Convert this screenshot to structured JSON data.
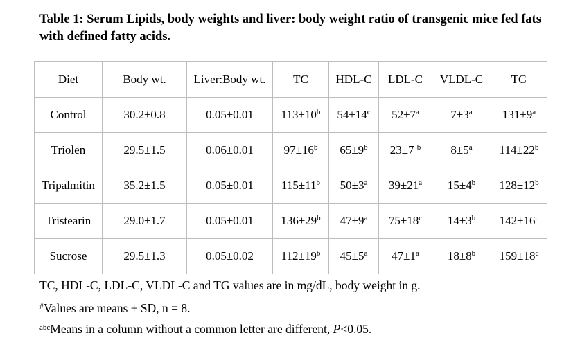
{
  "caption": "Table 1: Serum Lipids, body weights and liver: body weight ratio of transgenic mice fed fats with defined fatty acids.",
  "table": {
    "headers": [
      "Diet",
      "Body wt.",
      "Liver:Body wt.",
      "TC",
      "HDL-C",
      "LDL-C",
      "VLDL-C",
      "TG"
    ],
    "rows": [
      [
        {
          "v": "Control"
        },
        {
          "v": "30.2±0.8"
        },
        {
          "v": "0.05±0.01"
        },
        {
          "v": "113±10",
          "s": "b"
        },
        {
          "v": "54±14",
          "s": "c"
        },
        {
          "v": "52±7",
          "s": "a"
        },
        {
          "v": "7±3",
          "s": "a"
        },
        {
          "v": "131±9",
          "s": "a"
        }
      ],
      [
        {
          "v": "Triolen"
        },
        {
          "v": "29.5±1.5"
        },
        {
          "v": "0.06±0.01"
        },
        {
          "v": "97±16",
          "s": "b"
        },
        {
          "v": "65±9",
          "s": "b"
        },
        {
          "v": "23±7 ",
          "s": "b"
        },
        {
          "v": "8±5",
          "s": "a"
        },
        {
          "v": "114±22",
          "s": "b"
        }
      ],
      [
        {
          "v": "Tripalmitin"
        },
        {
          "v": "35.2±1.5"
        },
        {
          "v": "0.05±0.01"
        },
        {
          "v": "115±11",
          "s": "b"
        },
        {
          "v": "50±3",
          "s": "a"
        },
        {
          "v": "39±21",
          "s": "a"
        },
        {
          "v": "15±4",
          "s": "b"
        },
        {
          "v": "128±12",
          "s": "b"
        }
      ],
      [
        {
          "v": "Tristearin"
        },
        {
          "v": "29.0±1.7"
        },
        {
          "v": "0.05±0.01"
        },
        {
          "v": "136±29",
          "s": "b"
        },
        {
          "v": "47±9",
          "s": "a"
        },
        {
          "v": "75±18",
          "s": "c"
        },
        {
          "v": "14±3",
          "s": "b"
        },
        {
          "v": "142±16",
          "s": "c"
        }
      ],
      [
        {
          "v": "Sucrose"
        },
        {
          "v": "29.5±1.3"
        },
        {
          "v": "0.05±0.02"
        },
        {
          "v": "112±19",
          "s": "b"
        },
        {
          "v": "45±5",
          "s": "a"
        },
        {
          "v": "47±1",
          "s": "a"
        },
        {
          "v": "18±8",
          "s": "b"
        },
        {
          "v": "159±18",
          "s": "c"
        }
      ]
    ]
  },
  "notes": {
    "units": "TC, HDL-C, LDL-C, VLDL-C and TG values are in mg/dL, body weight in g.",
    "values_mark": "#",
    "values_text": "Values are means ± SD, n = 8.",
    "letters_mark": "abc",
    "letters_text_1": "Means in a column without a common letter are different, ",
    "p_symbol": "P",
    "p_value": "<0.05."
  }
}
